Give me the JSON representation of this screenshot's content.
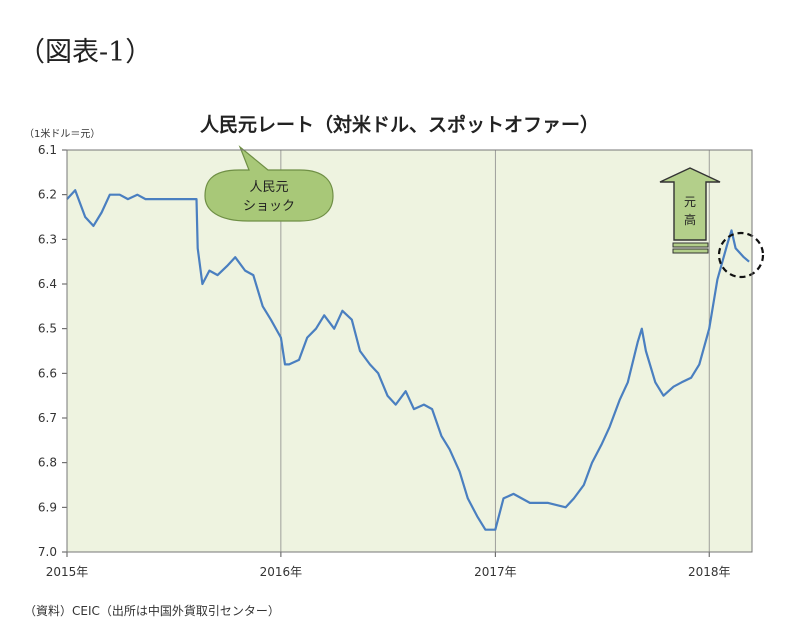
{
  "figure_label": "（図表-1）",
  "source_note": "（資料）CEIC（出所は中国外貨取引センター）",
  "callout": {
    "line1": "人民元",
    "line2": "ショック"
  },
  "arrow_text": [
    "元",
    "高"
  ],
  "colors": {
    "plot_bg": "#eef3e0",
    "line": "#4a7fc0",
    "callout_fill": "#a8c878",
    "arrow_fill": "#b3cf8a"
  },
  "chart_data": {
    "type": "line",
    "title": "人民元レート（対米ドル、スポットオファー）",
    "ylabel": "（1米ドル＝元）",
    "xlabel": "",
    "y_inverted": true,
    "ylim": [
      6.1,
      7.0
    ],
    "yticks": [
      6.1,
      6.2,
      6.3,
      6.4,
      6.5,
      6.6,
      6.7,
      6.8,
      6.9,
      7.0
    ],
    "ytick_labels": [
      "6.1",
      "6.2",
      "6.3",
      "6.4",
      "6.5",
      "6.6",
      "6.7",
      "6.8",
      "6.9",
      "7.0"
    ],
    "xlim": [
      "2015-01-01",
      "2018-03-15"
    ],
    "xticks": [
      "2015-01-01",
      "2016-01-01",
      "2017-01-01",
      "2018-01-01"
    ],
    "xtick_labels": [
      "2015年",
      "2016年",
      "2017年",
      "2018年"
    ],
    "grid": "vertical at year ticks",
    "series": [
      {
        "x": [
          "2015-01-01",
          "2015-01-15",
          "2015-02-01",
          "2015-02-15",
          "2015-03-01",
          "2015-03-15",
          "2015-04-01",
          "2015-04-15",
          "2015-05-01",
          "2015-05-15",
          "2015-06-01",
          "2015-07-01",
          "2015-08-10",
          "2015-08-12",
          "2015-08-20",
          "2015-09-01",
          "2015-09-15",
          "2015-10-01",
          "2015-10-15",
          "2015-11-01",
          "2015-11-15",
          "2015-12-01",
          "2015-12-15",
          "2016-01-01",
          "2016-01-08",
          "2016-01-15",
          "2016-02-01",
          "2016-02-15",
          "2016-03-01",
          "2016-03-15",
          "2016-04-01",
          "2016-04-15",
          "2016-05-01",
          "2016-05-15",
          "2016-06-01",
          "2016-06-15",
          "2016-07-01",
          "2016-07-15",
          "2016-08-01",
          "2016-08-15",
          "2016-09-01",
          "2016-09-15",
          "2016-10-01",
          "2016-10-15",
          "2016-11-01",
          "2016-11-15",
          "2016-12-01",
          "2016-12-15",
          "2017-01-01",
          "2017-01-15",
          "2017-02-01",
          "2017-03-01",
          "2017-04-01",
          "2017-05-01",
          "2017-05-15",
          "2017-06-01",
          "2017-06-15",
          "2017-07-01",
          "2017-07-15",
          "2017-08-01",
          "2017-08-15",
          "2017-09-01",
          "2017-09-08",
          "2017-09-15",
          "2017-10-01",
          "2017-10-15",
          "2017-11-01",
          "2017-11-15",
          "2017-12-01",
          "2017-12-15",
          "2018-01-01",
          "2018-01-15",
          "2018-02-01",
          "2018-02-08",
          "2018-02-15",
          "2018-03-01",
          "2018-03-10"
        ],
        "y": [
          6.21,
          6.19,
          6.25,
          6.27,
          6.24,
          6.2,
          6.2,
          6.21,
          6.2,
          6.21,
          6.21,
          6.21,
          6.21,
          6.32,
          6.4,
          6.37,
          6.38,
          6.36,
          6.34,
          6.37,
          6.38,
          6.45,
          6.48,
          6.52,
          6.58,
          6.58,
          6.57,
          6.52,
          6.5,
          6.47,
          6.5,
          6.46,
          6.48,
          6.55,
          6.58,
          6.6,
          6.65,
          6.67,
          6.64,
          6.68,
          6.67,
          6.68,
          6.74,
          6.77,
          6.82,
          6.88,
          6.92,
          6.95,
          6.95,
          6.88,
          6.87,
          6.89,
          6.89,
          6.9,
          6.88,
          6.85,
          6.8,
          6.76,
          6.72,
          6.66,
          6.62,
          6.53,
          6.5,
          6.55,
          6.62,
          6.65,
          6.63,
          6.62,
          6.61,
          6.58,
          6.5,
          6.39,
          6.31,
          6.28,
          6.32,
          6.34,
          6.35
        ]
      }
    ]
  }
}
